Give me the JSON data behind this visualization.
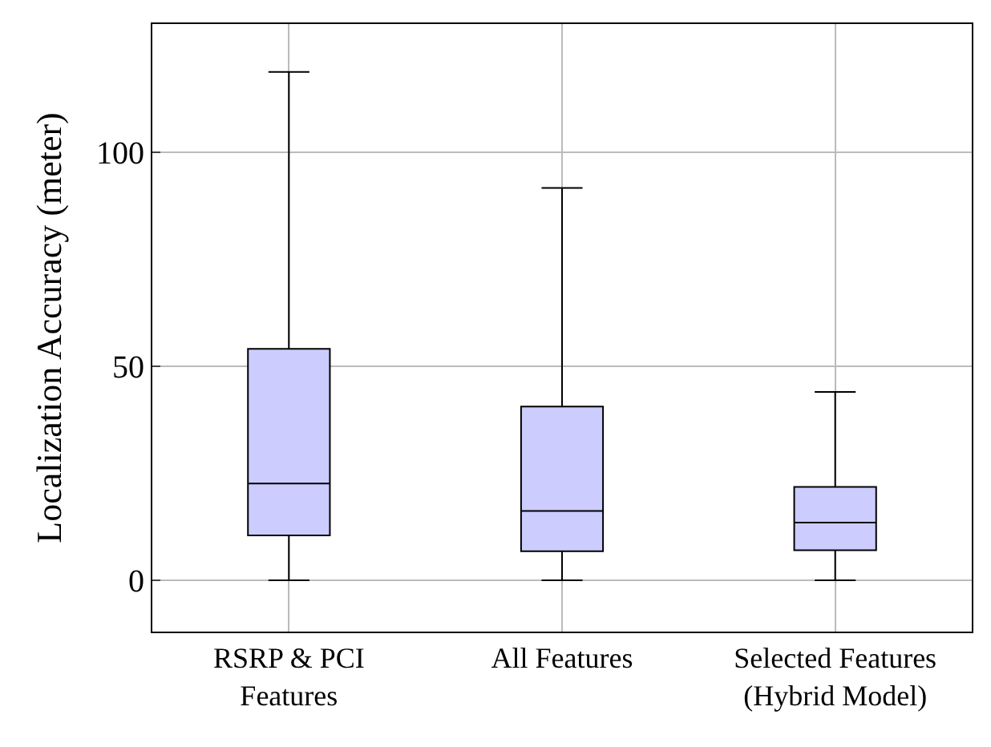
{
  "chart_data": {
    "type": "box",
    "ylabel": "Localization Accuracy (meter)",
    "categories": [
      "RSRP & PCI\nFeatures",
      "All Features",
      "Selected Features\n(Hybrid Model)"
    ],
    "boxes": [
      {
        "low": 0,
        "q1": 10.5,
        "median": 22.6,
        "q3": 54.1,
        "high": 118.8
      },
      {
        "low": 0,
        "q1": 6.8,
        "median": 16.2,
        "q3": 40.6,
        "high": 91.7
      },
      {
        "low": 0,
        "q1": 7.0,
        "median": 13.5,
        "q3": 21.8,
        "high": 44.0
      }
    ],
    "color": "#ccccff",
    "ylim": [
      -12,
      130
    ],
    "yticks": [
      0,
      50,
      100
    ],
    "grid": true,
    "legend": false
  }
}
